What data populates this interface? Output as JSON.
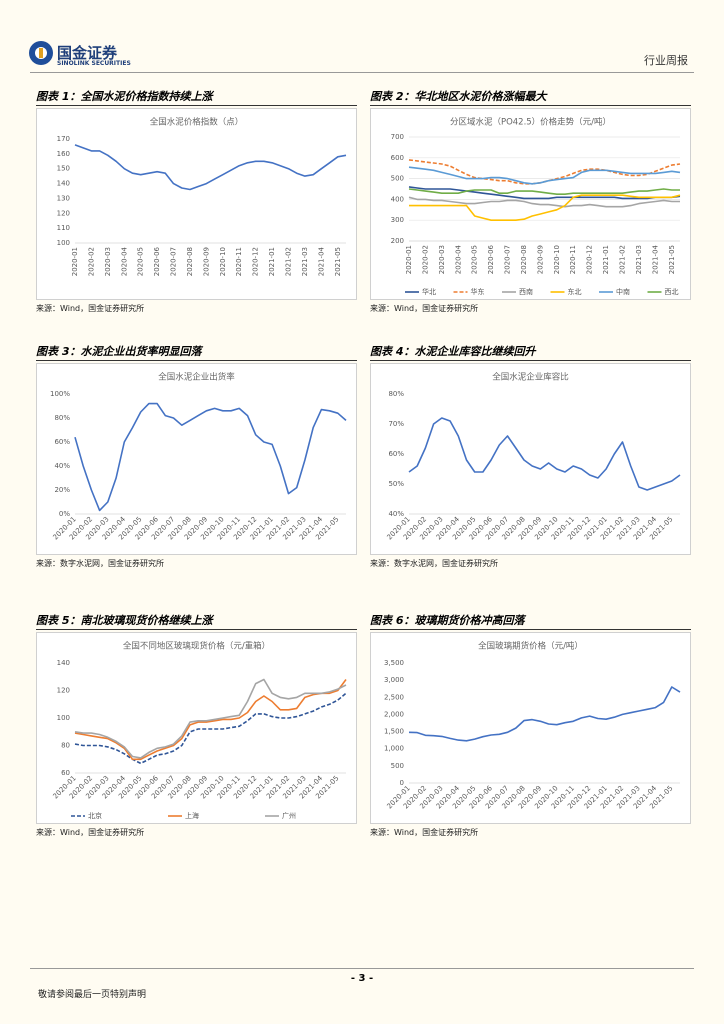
{
  "header": {
    "logo_cn": "国金证券",
    "logo_en": "SINOLINK SECURITIES",
    "report_type": "行业周报"
  },
  "figures": [
    {
      "caption": "图表 1：全国水泥价格指数持续上涨",
      "source": "来源：Wind，国金证券研究所",
      "chart_data": {
        "type": "line",
        "title": "全国水泥价格指数（点）",
        "categories": [
          "2020-01",
          null,
          "2020-02",
          null,
          "2020-03",
          null,
          "2020-04",
          null,
          "2020-05",
          null,
          "2020-06",
          null,
          "2020-07",
          null,
          "2020-08",
          null,
          "2020-09",
          null,
          "2020-10",
          null,
          "2020-11",
          null,
          "2020-12",
          null,
          "2021-01",
          null,
          "2021-02",
          null,
          "2021-03",
          null,
          "2021-04",
          null,
          "2021-05",
          null
        ],
        "values": [
          166,
          164,
          162,
          162,
          159,
          155,
          150,
          147,
          146,
          147,
          148,
          147,
          140,
          137,
          136,
          138,
          140,
          143,
          146,
          149,
          152,
          154,
          155,
          155,
          154,
          152,
          150,
          147,
          145,
          146,
          150,
          154,
          158,
          159
        ],
        "color": "#4472c4",
        "ylim": [
          100,
          170
        ],
        "yticks": [
          100,
          110,
          120,
          130,
          140,
          150,
          160,
          170
        ],
        "grid": false
      }
    },
    {
      "caption": "图表 2：华北地区水泥价格涨幅最大",
      "source": "来源：Wind，国金证券研究所",
      "chart_data": {
        "type": "line",
        "title": "分区域水泥（PO42.5）价格走势（元/吨）",
        "categories": [
          "2020-01",
          null,
          "2020-02",
          null,
          "2020-03",
          null,
          "2020-04",
          null,
          "2020-05",
          null,
          "2020-06",
          null,
          "2020-07",
          null,
          "2020-08",
          null,
          "2020-09",
          null,
          "2020-10",
          null,
          "2020-11",
          null,
          "2020-12",
          null,
          "2021-01",
          null,
          "2021-02",
          null,
          "2021-03",
          null,
          "2021-04",
          null,
          "2021-05",
          null
        ],
        "series": [
          {
            "name": "华北",
            "color": "#2f5597",
            "values": [
              460,
              455,
              450,
              450,
              450,
              450,
              445,
              440,
              435,
              430,
              425,
              420,
              415,
              410,
              405,
              405,
              405,
              405,
              410,
              410,
              410,
              410,
              410,
              410,
              410,
              410,
              405,
              405,
              405,
              405,
              410,
              410,
              410,
              415
            ]
          },
          {
            "name": "华东",
            "color": "#ed7d31",
            "style": "dashed",
            "values": [
              590,
              585,
              580,
              575,
              570,
              560,
              540,
              520,
              505,
              500,
              495,
              490,
              490,
              480,
              475,
              475,
              480,
              490,
              500,
              510,
              525,
              540,
              545,
              545,
              540,
              530,
              520,
              515,
              515,
              520,
              535,
              550,
              565,
              570
            ]
          },
          {
            "name": "西南",
            "color": "#a5a5a5",
            "values": [
              410,
              400,
              400,
              395,
              395,
              390,
              385,
              380,
              380,
              385,
              390,
              390,
              395,
              395,
              390,
              380,
              375,
              375,
              370,
              365,
              370,
              370,
              375,
              370,
              365,
              365,
              365,
              370,
              380,
              385,
              390,
              395,
              390,
              390
            ]
          },
          {
            "name": "东北",
            "color": "#ffc000",
            "values": [
              370,
              370,
              370,
              370,
              370,
              370,
              370,
              370,
              320,
              310,
              300,
              300,
              300,
              300,
              305,
              320,
              330,
              340,
              350,
              370,
              410,
              420,
              420,
              420,
              420,
              420,
              420,
              415,
              410,
              410,
              410,
              410,
              410,
              420
            ]
          },
          {
            "name": "中南",
            "color": "#5b9bd5",
            "values": [
              555,
              550,
              545,
              540,
              530,
              520,
              510,
              500,
              500,
              500,
              505,
              505,
              500,
              490,
              480,
              475,
              480,
              490,
              495,
              500,
              505,
              530,
              540,
              540,
              540,
              535,
              530,
              525,
              525,
              525,
              525,
              530,
              535,
              530
            ]
          },
          {
            "name": "西北",
            "color": "#70ad47",
            "values": [
              450,
              445,
              440,
              435,
              430,
              430,
              430,
              440,
              445,
              445,
              445,
              430,
              430,
              440,
              440,
              440,
              435,
              430,
              425,
              425,
              430,
              430,
              430,
              430,
              430,
              430,
              430,
              435,
              440,
              440,
              445,
              450,
              445,
              445
            ]
          }
        ],
        "ylim": [
          200,
          700
        ],
        "yticks": [
          200,
          300,
          400,
          500,
          600,
          700
        ],
        "grid": true
      }
    },
    {
      "caption": "图表 3：水泥企业出货率明显回落",
      "source": "来源：数字水泥网，国金证券研究所",
      "chart_data": {
        "type": "line",
        "title": "全国水泥企业出货率",
        "categories": [
          "2020-01",
          null,
          "2020-02",
          null,
          "2020-03",
          null,
          "2020-04",
          null,
          "2020-05",
          null,
          "2020-06",
          null,
          "2020-07",
          null,
          "2020-08",
          null,
          "2020-09",
          null,
          "2020-10",
          null,
          "2020-11",
          null,
          "2020-12",
          null,
          "2021-01",
          null,
          "2021-02",
          null,
          "2021-03",
          null,
          "2021-04",
          null,
          "2021-05",
          null
        ],
        "values": [
          64,
          40,
          20,
          3,
          10,
          30,
          60,
          72,
          85,
          92,
          92,
          82,
          80,
          74,
          78,
          82,
          86,
          88,
          86,
          86,
          88,
          82,
          66,
          60,
          58,
          40,
          17,
          22,
          45,
          72,
          87,
          86,
          84,
          78
        ],
        "color": "#4472c4",
        "ylim": [
          0,
          100
        ],
        "yticks": [
          {
            "value": 0,
            "label": "0%"
          },
          {
            "value": 20,
            "label": "20%"
          },
          {
            "value": 40,
            "label": "40%"
          },
          {
            "value": 60,
            "label": "60%"
          },
          {
            "value": 80,
            "label": "80%"
          },
          {
            "value": 100,
            "label": "100%"
          }
        ],
        "grid": false
      }
    },
    {
      "caption": "图表 4：水泥企业库容比继续回升",
      "source": "来源：数字水泥网，国金证券研究所",
      "chart_data": {
        "type": "line",
        "title": "全国水泥企业库容比",
        "categories": [
          "2020-01",
          null,
          "2020-02",
          null,
          "2020-03",
          null,
          "2020-04",
          null,
          "2020-05",
          null,
          "2020-06",
          null,
          "2020-07",
          null,
          "2020-08",
          null,
          "2020-09",
          null,
          "2020-10",
          null,
          "2020-11",
          null,
          "2020-12",
          null,
          "2021-01",
          null,
          "2021-02",
          null,
          "2021-03",
          null,
          "2021-04",
          null,
          "2021-05",
          null
        ],
        "values": [
          54,
          56,
          62,
          70,
          72,
          71,
          66,
          58,
          54,
          54,
          58,
          63,
          66,
          62,
          58,
          56,
          55,
          57,
          55,
          54,
          56,
          55,
          53,
          52,
          55,
          60,
          64,
          56,
          49,
          48,
          49,
          50,
          51,
          53
        ],
        "color": "#4472c4",
        "ylim": [
          40,
          80
        ],
        "yticks": [
          {
            "value": 40,
            "label": "40%"
          },
          {
            "value": 50,
            "label": "50%"
          },
          {
            "value": 60,
            "label": "60%"
          },
          {
            "value": 70,
            "label": "70%"
          },
          {
            "value": 80,
            "label": "80%"
          }
        ],
        "grid": false
      }
    },
    {
      "caption": "图表 5：南北玻璃现货价格继续上涨",
      "source": "来源：Wind，国金证券研究所",
      "chart_data": {
        "type": "line",
        "title": "全国不同地区玻璃现货价格（元/重箱）",
        "categories": [
          "2020-01",
          null,
          "2020-02",
          null,
          "2020-03",
          null,
          "2020-04",
          null,
          "2020-05",
          null,
          "2020-06",
          null,
          "2020-07",
          null,
          "2020-08",
          null,
          "2020-09",
          null,
          "2020-10",
          null,
          "2020-11",
          null,
          "2020-12",
          null,
          "2021-01",
          null,
          "2021-02",
          null,
          "2021-03",
          null,
          "2021-04",
          null,
          "2021-05",
          null
        ],
        "series": [
          {
            "name": "北京",
            "color": "#2f5597",
            "style": "dashed",
            "values": [
              81,
              80,
              80,
              80,
              79,
              77,
              74,
              70,
              67,
              70,
              73,
              74,
              76,
              80,
              90,
              92,
              92,
              92,
              92,
              93,
              94,
              98,
              103,
              103,
              101,
              100,
              100,
              101,
              103,
              105,
              108,
              110,
              113,
              118
            ]
          },
          {
            "name": "上海",
            "color": "#ed7d31",
            "values": [
              89,
              88,
              87,
              86,
              85,
              82,
              78,
              70,
              70,
              73,
              76,
              78,
              80,
              85,
              95,
              97,
              97,
              98,
              99,
              99,
              100,
              104,
              112,
              116,
              112,
              106,
              106,
              107,
              115,
              117,
              118,
              118,
              120,
              128
            ]
          },
          {
            "name": "广州",
            "color": "#a5a5a5",
            "values": [
              90,
              89,
              89,
              88,
              86,
              83,
              79,
              72,
              71,
              75,
              78,
              79,
              81,
              87,
              97,
              98,
              98,
              99,
              100,
              101,
              102,
              112,
              125,
              128,
              118,
              115,
              114,
              115,
              118,
              118,
              118,
              119,
              121,
              124
            ]
          }
        ],
        "ylim": [
          60,
          140
        ],
        "yticks": [
          60,
          80,
          100,
          120,
          140
        ],
        "grid": false
      }
    },
    {
      "caption": "图表 6：玻璃期货价格冲高回落",
      "source": "来源：Wind，国金证券研究所",
      "chart_data": {
        "type": "line",
        "title": "全国玻璃期货价格（元/吨）",
        "categories": [
          "2020-01",
          null,
          "2020-02",
          null,
          "2020-03",
          null,
          "2020-04",
          null,
          "2020-05",
          null,
          "2020-06",
          null,
          "2020-07",
          null,
          "2020-08",
          null,
          "2020-09",
          null,
          "2020-10",
          null,
          "2020-11",
          null,
          "2020-12",
          null,
          "2021-01",
          null,
          "2021-02",
          null,
          "2021-03",
          null,
          "2021-04",
          null,
          "2021-05",
          null
        ],
        "values": [
          1480,
          1470,
          1390,
          1380,
          1360,
          1300,
          1250,
          1230,
          1280,
          1350,
          1400,
          1420,
          1480,
          1600,
          1820,
          1850,
          1800,
          1720,
          1700,
          1760,
          1800,
          1900,
          1950,
          1880,
          1860,
          1920,
          2000,
          2050,
          2100,
          2150,
          2200,
          2350,
          2800,
          2650
        ],
        "color": "#4472c4",
        "ylim": [
          0,
          3500
        ],
        "yticks": [
          0,
          500,
          {
            "value": 1000,
            "label": "1,000"
          },
          {
            "value": 1500,
            "label": "1,500"
          },
          {
            "value": 2000,
            "label": "2,000"
          },
          {
            "value": 2500,
            "label": "2,500"
          },
          {
            "value": 3000,
            "label": "3,000"
          },
          {
            "value": 3500,
            "label": "3,500"
          }
        ],
        "grid": false
      }
    }
  ],
  "footer": {
    "page": "- 3 -",
    "disclaimer": "敬请参阅最后一页特别声明"
  }
}
